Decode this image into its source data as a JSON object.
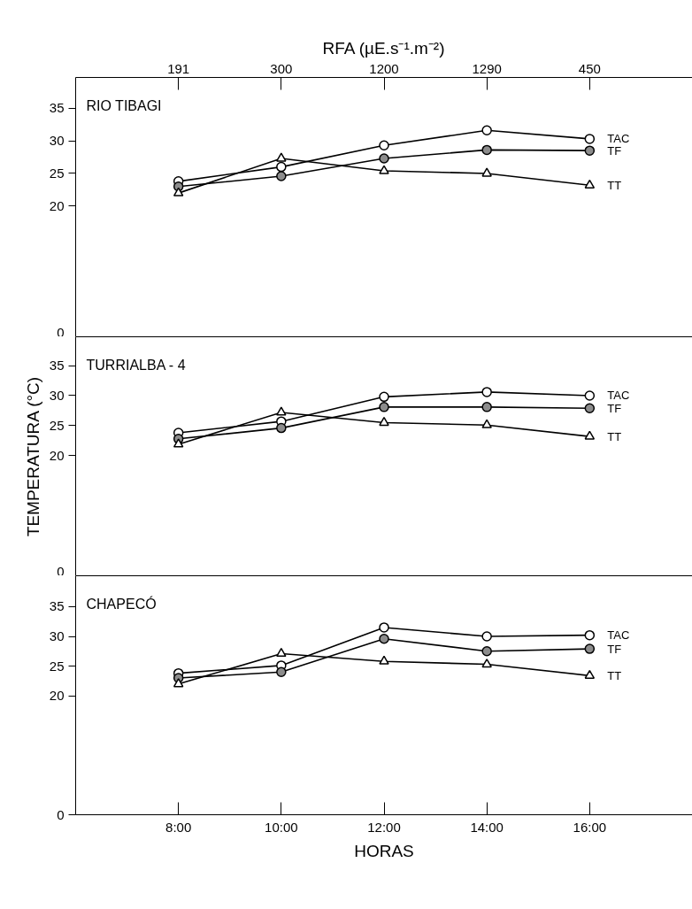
{
  "chart_data": [
    {
      "type": "line",
      "title": "RIO TIBAGI",
      "xlabel": "RFA (µE.s⁻¹.m⁻²)",
      "categories": [
        "191",
        "300",
        "1200",
        "1290",
        "450"
      ],
      "ylim": [
        0,
        39.7
      ],
      "yticks": [
        0,
        20,
        25,
        30,
        35
      ],
      "legend": false,
      "series": [
        {
          "name": "TAC",
          "marker": "circle",
          "color": "#ffffff",
          "values": [
            23.8,
            26.0,
            29.3,
            31.6,
            30.3
          ]
        },
        {
          "name": "TF",
          "marker": "circle",
          "color": "#8c8c8c",
          "values": [
            23.0,
            24.6,
            27.3,
            28.6,
            28.5
          ]
        },
        {
          "name": "TT",
          "marker": "triangle",
          "color": "#ffffff",
          "values": [
            22.0,
            27.3,
            25.4,
            25.0,
            23.2
          ]
        }
      ]
    },
    {
      "type": "line",
      "title": "TURRIALBA - 4",
      "ylabel": "TEMPERATURA (°C)",
      "categories": [
        null,
        null,
        null,
        null,
        null
      ],
      "ylim": [
        0,
        39.8
      ],
      "yticks": [
        0,
        20,
        25,
        30,
        35
      ],
      "tick_labels": "y",
      "legend": false,
      "series": [
        {
          "name": "TAC",
          "marker": "circle",
          "color": "#ffffff",
          "values": [
            23.8,
            25.7,
            29.8,
            30.6,
            30.0
          ]
        },
        {
          "name": "TF",
          "marker": "circle",
          "color": "#8c8c8c",
          "values": [
            22.8,
            24.6,
            28.1,
            28.1,
            27.9
          ]
        },
        {
          "name": "TT",
          "marker": "triangle",
          "color": "#ffffff",
          "values": [
            21.9,
            27.2,
            25.5,
            25.1,
            23.2
          ]
        }
      ]
    },
    {
      "type": "line",
      "title": "CHAPECÓ",
      "xlabel": "HORAS",
      "x": [
        8,
        10,
        12,
        14,
        16
      ],
      "xlim": [
        6,
        18
      ],
      "ylim": [
        0,
        40.2
      ],
      "yticks": [
        0,
        20,
        25,
        30,
        35
      ],
      "xticks": [
        {
          "value": 8,
          "label": "8:00"
        },
        {
          "value": 10,
          "label": "10:00"
        },
        {
          "value": 12,
          "label": "12:00"
        },
        {
          "value": 14,
          "label": "14:00"
        },
        {
          "value": 16,
          "label": "16:00"
        }
      ],
      "legend": false,
      "series": [
        {
          "name": "TAC",
          "marker": "circle",
          "color": "#ffffff",
          "values": [
            23.8,
            25.1,
            31.5,
            30.0,
            30.2
          ]
        },
        {
          "name": "TF",
          "marker": "circle",
          "color": "#8c8c8c",
          "values": [
            23.0,
            24.0,
            29.6,
            27.5,
            27.9
          ]
        },
        {
          "name": "TT",
          "marker": "triangle",
          "color": "#ffffff",
          "values": [
            22.0,
            27.1,
            25.8,
            25.3,
            23.4
          ]
        }
      ]
    }
  ]
}
